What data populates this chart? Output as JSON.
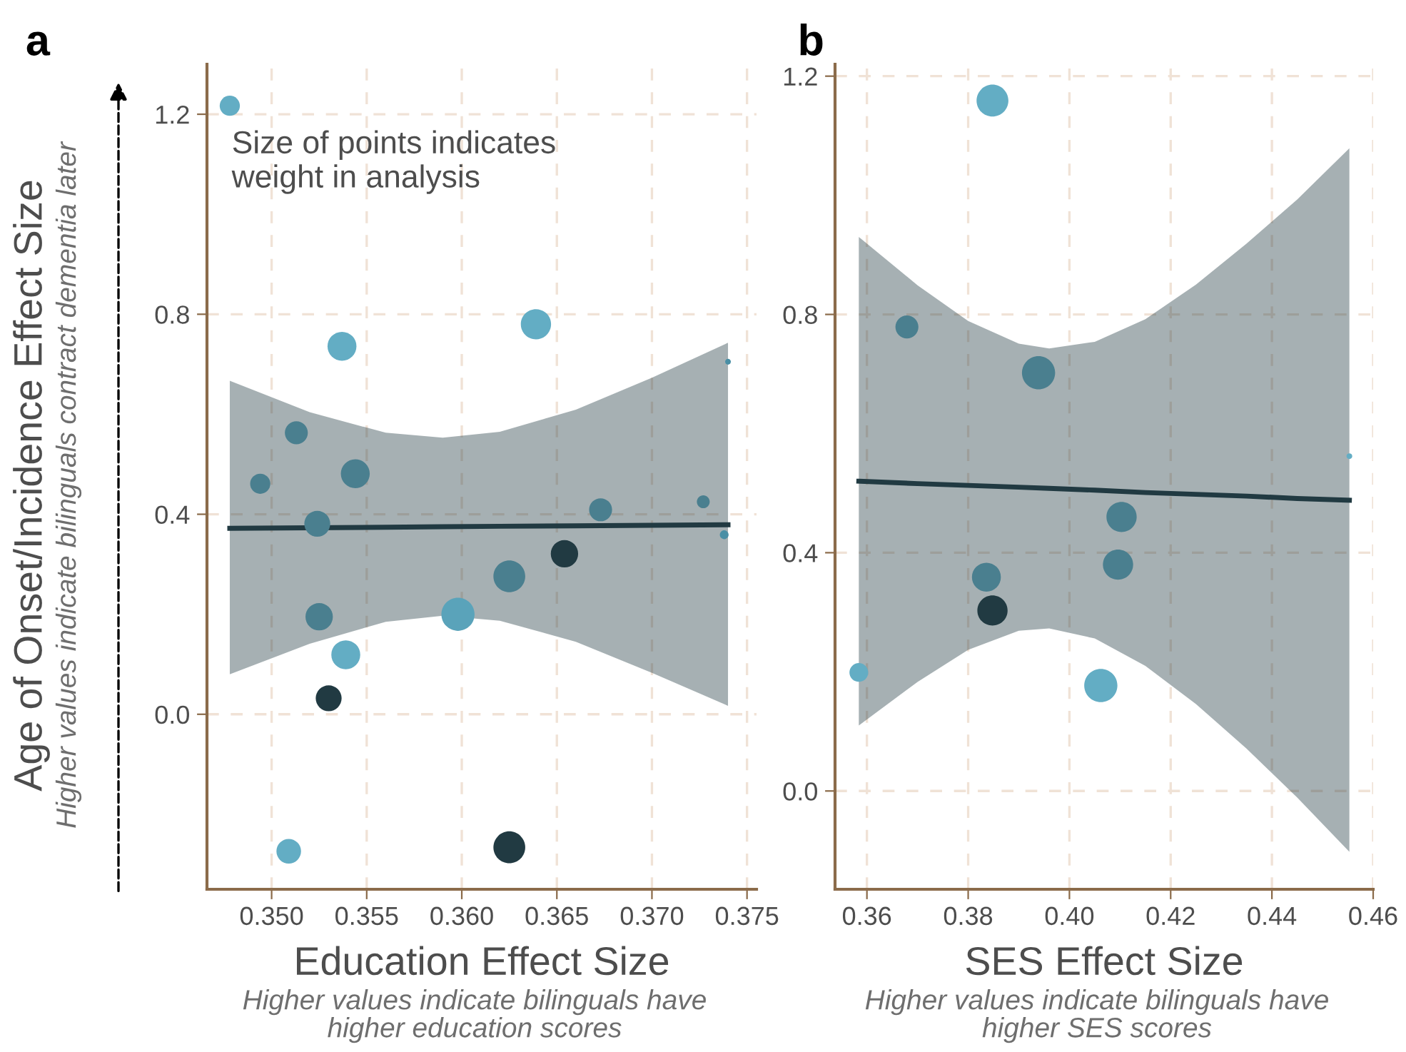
{
  "chart_data": [
    {
      "type": "bubble",
      "title": "a",
      "xlabel": "Education Effect Size",
      "ylabel": "Age of Onset/Incidence Effect Size",
      "annotations": [
        "Size of points indicates\nweight in analysis",
        "Higher values indicate bilinguals contract dementia later",
        "Higher values indicate bilinguals have\nhigher education scores"
      ],
      "xlim": [
        0.3466,
        0.3755
      ],
      "ylim": [
        -0.35,
        1.3
      ],
      "xticks": [
        {
          "value": 0.35,
          "label": "0.350"
        },
        {
          "value": 0.355,
          "label": "0.355"
        },
        {
          "value": 0.36,
          "label": "0.360"
        },
        {
          "value": 0.365,
          "label": "0.365"
        },
        {
          "value": 0.37,
          "label": "0.370"
        },
        {
          "value": 0.375,
          "label": "0.375"
        }
      ],
      "yticks": [
        {
          "value": 0.0,
          "label": "0.0"
        },
        {
          "value": 0.4,
          "label": "0.4"
        },
        {
          "value": 0.8,
          "label": "0.8"
        },
        {
          "value": 1.2,
          "label": "1.2"
        }
      ],
      "grid": true,
      "series": [
        {
          "type": "line",
          "color": "#213a42",
          "x": [
            0.3478,
            0.352,
            0.356,
            0.359,
            0.362,
            0.366,
            0.37,
            0.374
          ],
          "values": [
            0.372,
            0.373,
            0.374,
            0.375,
            0.376,
            0.377,
            0.378,
            0.379
          ],
          "lower": [
            0.08,
            0.141,
            0.185,
            0.197,
            0.187,
            0.145,
            0.083,
            0.017
          ],
          "upper": [
            0.667,
            0.604,
            0.563,
            0.553,
            0.565,
            0.609,
            0.673,
            0.743
          ]
        },
        {
          "type": "bubble",
          "x": [
            0.3478,
            0.3537,
            0.3639,
            0.374,
            0.3513,
            0.3494,
            0.3544,
            0.3524,
            0.3673,
            0.3727,
            0.3738,
            0.3654,
            0.3625,
            0.3598,
            0.3525,
            0.3539,
            0.353,
            0.3509,
            0.3625
          ],
          "values": [
            1.217,
            0.736,
            0.78,
            0.705,
            0.563,
            0.461,
            0.481,
            0.381,
            0.409,
            0.425,
            0.359,
            0.321,
            0.276,
            0.2,
            0.195,
            0.119,
            0.032,
            -0.274,
            -0.266
          ],
          "sizes": [
            0.37,
            0.76,
            0.83,
            0.03,
            0.48,
            0.37,
            0.76,
            0.61,
            0.48,
            0.15,
            0.07,
            0.68,
            0.92,
            1,
            0.68,
            0.76,
            0.61,
            0.55,
            0.92
          ],
          "colors": [
            "#63adc4",
            "#63adc4",
            "#63adc4",
            "#4a8fa5",
            "#4a7f8f",
            "#4a7f8f",
            "#4a7f8f",
            "#4a7f8f",
            "#4a7f8f",
            "#4a7f8f",
            "#4a8fa5",
            "#213a42",
            "#4a7f8f",
            "#5aa3ba",
            "#4a7f8f",
            "#63adc4",
            "#213a42",
            "#63adc4",
            "#213a42"
          ]
        }
      ]
    },
    {
      "type": "bubble",
      "title": "b",
      "xlabel": "SES Effect Size",
      "annotations": [
        "Higher values indicate bilinguals have\nhigher SES scores"
      ],
      "xlim": [
        0.3537,
        0.46
      ],
      "ylim": [
        -0.165,
        1.22
      ],
      "xticks": [
        {
          "value": 0.36,
          "label": "0.36"
        },
        {
          "value": 0.38,
          "label": "0.38"
        },
        {
          "value": 0.4,
          "label": "0.40"
        },
        {
          "value": 0.42,
          "label": "0.42"
        },
        {
          "value": 0.44,
          "label": "0.44"
        },
        {
          "value": 0.46,
          "label": "0.46"
        }
      ],
      "yticks": [
        {
          "value": 0.0,
          "label": "0.0"
        },
        {
          "value": 0.4,
          "label": "0.4"
        },
        {
          "value": 0.8,
          "label": "0.8"
        },
        {
          "value": 1.2,
          "label": "1.2"
        }
      ],
      "grid": true,
      "series": [
        {
          "type": "line",
          "color": "#213a42",
          "x": [
            0.3584,
            0.37,
            0.38,
            0.39,
            0.396,
            0.405,
            0.415,
            0.425,
            0.435,
            0.445,
            0.4553
          ],
          "values": [
            0.52,
            0.516,
            0.513,
            0.51,
            0.508,
            0.505,
            0.501,
            0.498,
            0.495,
            0.491,
            0.488
          ],
          "lower": [
            0.11,
            0.183,
            0.237,
            0.269,
            0.273,
            0.256,
            0.21,
            0.146,
            0.071,
            -0.011,
            -0.102
          ],
          "upper": [
            0.93,
            0.849,
            0.789,
            0.751,
            0.743,
            0.754,
            0.792,
            0.85,
            0.919,
            0.993,
            1.079
          ]
        },
        {
          "type": "bubble",
          "x": [
            0.3848,
            0.3679,
            0.3939,
            0.4553,
            0.4103,
            0.4096,
            0.3836,
            0.3848,
            0.3584,
            0.4062
          ],
          "values": [
            1.159,
            0.779,
            0.702,
            0.562,
            0.46,
            0.38,
            0.359,
            0.303,
            0.199,
            0.177
          ],
          "sizes": [
            0.92,
            0.48,
            1,
            0.03,
            0.83,
            0.83,
            0.76,
            0.83,
            0.32,
            1
          ],
          "colors": [
            "#63adc4",
            "#4a7f8f",
            "#4a7f8f",
            "#63adc4",
            "#4a7f8f",
            "#4a7f8f",
            "#4a7f8f",
            "#213a42",
            "#63adc4",
            "#63adc4"
          ]
        }
      ]
    }
  ]
}
